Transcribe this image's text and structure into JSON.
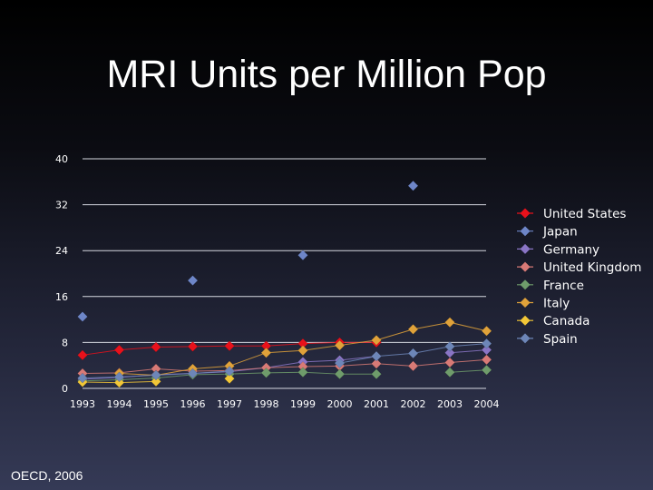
{
  "slide": {
    "title": "MRI Units per Million Pop",
    "source": "OECD, 2006"
  },
  "chart_data": {
    "type": "line",
    "title": "MRI Units per Million Pop",
    "xlabel": "",
    "ylabel": "",
    "ylim": [
      0,
      40
    ],
    "yticks": [
      0,
      8,
      16,
      24,
      32,
      40
    ],
    "grid": true,
    "legend_position": "right",
    "categories": [
      "1993",
      "1994",
      "1995",
      "1996",
      "1997",
      "1998",
      "1999",
      "2000",
      "2001",
      "2002",
      "2003",
      "2004"
    ],
    "series": [
      {
        "name": "United States",
        "color": "#e8111b",
        "values": [
          5.8,
          6.7,
          7.2,
          7.3,
          7.4,
          7.4,
          7.8,
          8.0,
          8.0,
          null,
          null,
          null
        ]
      },
      {
        "name": "Japan",
        "color": "#6e86c8",
        "values": [
          12.5,
          null,
          null,
          18.8,
          null,
          null,
          23.2,
          null,
          null,
          35.3,
          null,
          null
        ]
      },
      {
        "name": "Germany",
        "color": "#8a75c5",
        "values": [
          1.6,
          1.9,
          2.4,
          2.6,
          2.9,
          3.6,
          4.6,
          4.9,
          5.6,
          null,
          6.2,
          6.7
        ]
      },
      {
        "name": "United Kingdom",
        "color": "#d87a76",
        "values": [
          2.6,
          2.7,
          3.4,
          3.0,
          3.1,
          3.6,
          3.8,
          3.9,
          4.3,
          3.9,
          4.5,
          5.0
        ]
      },
      {
        "name": "France",
        "color": "#6f9c6b",
        "values": [
          1.3,
          1.5,
          1.8,
          2.4,
          2.5,
          2.7,
          2.8,
          2.5,
          2.5,
          null,
          2.8,
          3.2
        ]
      },
      {
        "name": "Italy",
        "color": "#e0a23a",
        "values": [
          null,
          2.6,
          2.3,
          3.4,
          3.9,
          6.2,
          6.6,
          7.5,
          8.4,
          10.3,
          11.5,
          10.0
        ]
      },
      {
        "name": "Canada",
        "color": "#f2c737",
        "values": [
          1.1,
          1.0,
          1.2,
          null,
          1.7,
          null,
          null,
          null,
          null,
          null,
          null,
          null
        ]
      },
      {
        "name": "Spain",
        "color": "#6d86b8",
        "values": [
          1.8,
          2.0,
          2.3,
          2.6,
          3.0,
          null,
          null,
          4.4,
          5.6,
          6.1,
          7.3,
          7.8
        ]
      }
    ]
  }
}
